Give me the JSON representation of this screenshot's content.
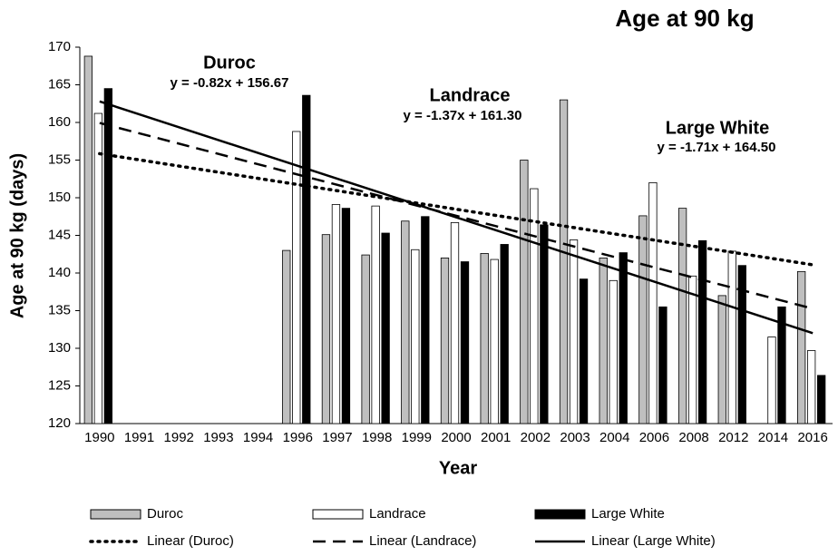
{
  "chart_data": {
    "type": "bar",
    "title": "Age at 90 kg",
    "x_label": "Year",
    "y_label": "Age at 90 kg (days)",
    "categories": [
      "1990",
      "1991",
      "1992",
      "1993",
      "1994",
      "1996",
      "1997",
      "1998",
      "1999",
      "2000",
      "2001",
      "2002",
      "2003",
      "2004",
      "2006",
      "2008",
      "2012",
      "2014",
      "2016"
    ],
    "series": [
      {
        "name": "Duroc",
        "color": "#bfbfbf",
        "values": [
          168.8,
          null,
          null,
          null,
          null,
          143,
          145.1,
          142.4,
          146.9,
          142,
          142.6,
          155,
          163,
          142,
          147.6,
          148.6,
          137,
          null,
          140.2
        ]
      },
      {
        "name": "Landrace",
        "color": "#ffffff",
        "values": [
          161.2,
          null,
          null,
          null,
          null,
          158.8,
          149.1,
          148.9,
          143.1,
          146.7,
          141.8,
          151.2,
          144.4,
          139,
          152,
          139.6,
          142.9,
          131.5,
          129.7
        ]
      },
      {
        "name": "Large White",
        "color": "#000000",
        "values": [
          164.5,
          null,
          null,
          null,
          null,
          163.6,
          148.6,
          145.3,
          147.5,
          141.5,
          143.8,
          146.4,
          139.2,
          142.7,
          135.5,
          144.3,
          141,
          135.5,
          126.4
        ]
      }
    ],
    "trendlines": [
      {
        "name": "Linear (Duroc)",
        "slope": -0.82,
        "intercept": 156.67,
        "equation": "y = -0.82x + 156.67",
        "dash": "2 6"
      },
      {
        "name": "Linear (Landrace)",
        "slope": -1.37,
        "intercept": 161.3,
        "equation": "y = -1.37x + 161.30",
        "dash": "14 8"
      },
      {
        "name": "Linear (Large White)",
        "slope": -1.71,
        "intercept": 164.5,
        "equation": "y = -1.71x + 164.50",
        "dash": ""
      }
    ],
    "ylim": [
      120,
      170
    ],
    "yticks": [
      120,
      125,
      130,
      135,
      140,
      145,
      150,
      155,
      160,
      165,
      170
    ]
  }
}
